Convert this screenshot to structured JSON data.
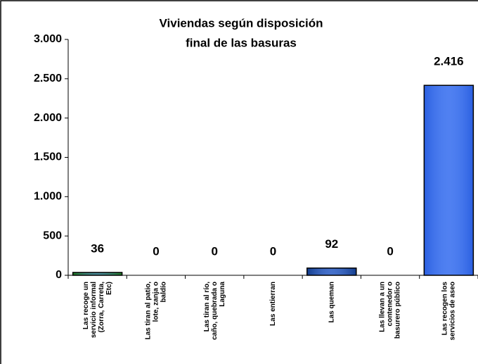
{
  "chart_data": {
    "type": "bar",
    "title": [
      "Viviendas según disposición",
      "final de las basuras"
    ],
    "categories": [
      [
        "Las recoge un",
        "servicio informal",
        "(Zorra, Carreta,",
        "Etc)"
      ],
      [
        "Las tiran al patio,",
        "lote, zanja o",
        "baldío"
      ],
      [
        "Las tiran al río,",
        "caño, quebrada o",
        "Laguna"
      ],
      [
        "Las entierran"
      ],
      [
        "Las queman"
      ],
      [
        "Las llevan a un",
        "contenedor o",
        "basurero público"
      ],
      [
        "Las recogen los",
        "servicios de aseo"
      ]
    ],
    "values": [
      36,
      0,
      0,
      0,
      92,
      0,
      2416
    ],
    "value_labels": [
      "36",
      "0",
      "0",
      "0",
      "92",
      "0",
      "2.416"
    ],
    "colors": [
      "#1e7a1e",
      "#2050b0",
      "#2050b0",
      "#2050b0",
      "#123c8c",
      "#2050b0",
      "#2a5fe0"
    ],
    "ylim": [
      0,
      3000
    ],
    "yticks": [
      {
        "value": 0,
        "label": "0"
      },
      {
        "value": 500,
        "label": "500"
      },
      {
        "value": 1000,
        "label": "1.000"
      },
      {
        "value": 1500,
        "label": "1.500"
      },
      {
        "value": 2000,
        "label": "2.000"
      },
      {
        "value": 2500,
        "label": "2.500"
      },
      {
        "value": 3000,
        "label": "3.000"
      }
    ]
  }
}
